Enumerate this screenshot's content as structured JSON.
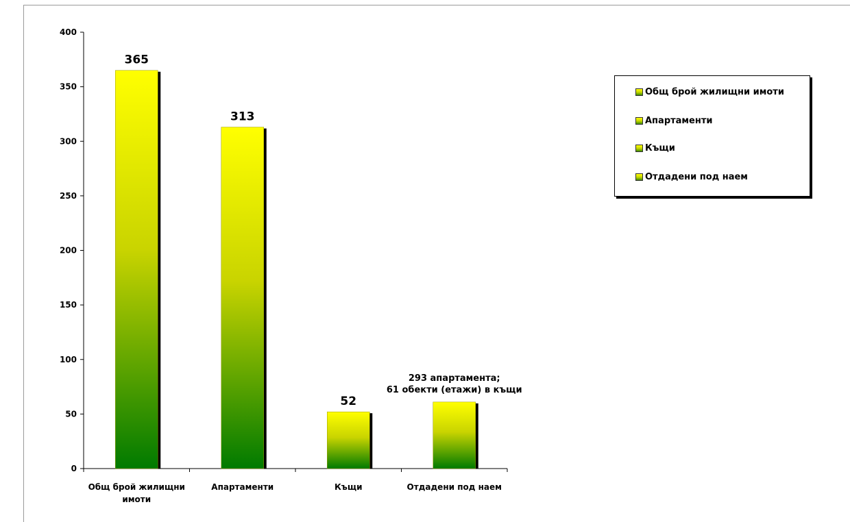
{
  "chart_data": {
    "type": "bar",
    "categories": [
      "Общ брой жилищни имоти",
      "Апартаменти",
      "Къщи",
      "Отдадени под наем"
    ],
    "series": [
      {
        "values": [
          365,
          313,
          52,
          61
        ]
      }
    ],
    "data_labels": [
      "365",
      "313",
      "52",
      "293 апартамента; 61 обекти (етажи) в къщи"
    ],
    "title": "",
    "xlabel": "",
    "ylabel": "",
    "ylim": [
      0,
      400
    ],
    "yticks": [
      0,
      50,
      100,
      150,
      200,
      250,
      300,
      350,
      400
    ],
    "grid": false,
    "legend": {
      "position": "right",
      "entries": [
        "Общ брой жилищни имоти",
        "Апартаменти",
        "Къщи",
        "Отдадени под наем"
      ]
    },
    "colors": {
      "bar_top": "#ffff00",
      "bar_bottom": "#008000",
      "shadow": "#000000"
    }
  }
}
